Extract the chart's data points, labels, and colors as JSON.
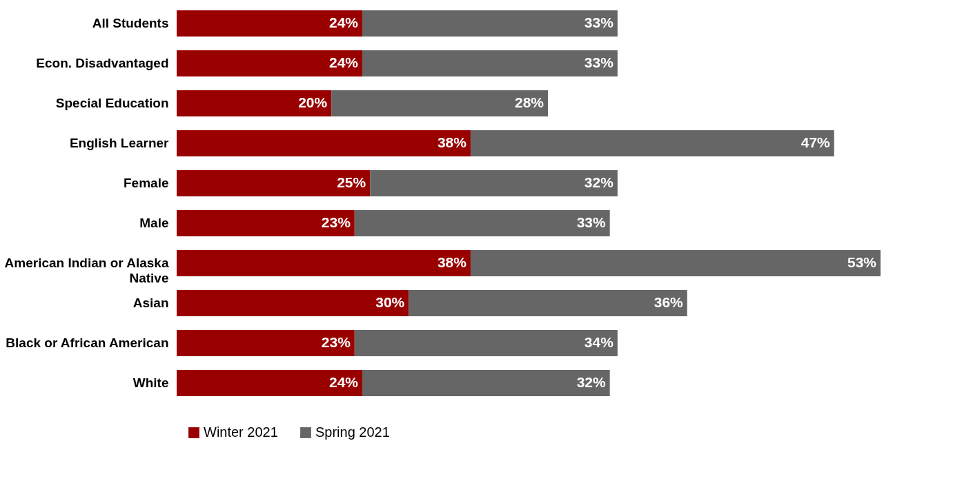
{
  "chart_data": {
    "type": "bar",
    "orientation": "horizontal",
    "stacked": true,
    "legend": "bottom",
    "categories": [
      "All Students",
      "Econ. Disadvantaged",
      "Special Education",
      "English Learner",
      "Female",
      "Male",
      "American Indian or Alaska Native",
      "Asian",
      "Black or African American",
      "White"
    ],
    "series": [
      {
        "name": "Winter 2021",
        "color": "#990000",
        "values": [
          24,
          24,
          20,
          38,
          25,
          23,
          38,
          30,
          23,
          24
        ],
        "value_labels": [
          "24%",
          "24%",
          "20%",
          "38%",
          "25%",
          "23%",
          "38%",
          "30%",
          "23%",
          "24%"
        ]
      },
      {
        "name": "Spring 2021",
        "color": "#666666",
        "values": [
          33,
          33,
          28,
          47,
          32,
          33,
          53,
          36,
          34,
          32
        ],
        "value_labels": [
          "33%",
          "33%",
          "28%",
          "47%",
          "32%",
          "33%",
          "53%",
          "36%",
          "34%",
          "32%"
        ]
      }
    ]
  }
}
